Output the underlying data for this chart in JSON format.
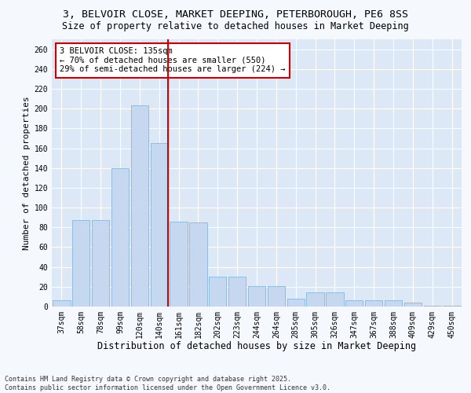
{
  "title1": "3, BELVOIR CLOSE, MARKET DEEPING, PETERBOROUGH, PE6 8SS",
  "title2": "Size of property relative to detached houses in Market Deeping",
  "xlabel": "Distribution of detached houses by size in Market Deeping",
  "ylabel": "Number of detached properties",
  "categories": [
    "37sqm",
    "58sqm",
    "78sqm",
    "99sqm",
    "120sqm",
    "140sqm",
    "161sqm",
    "182sqm",
    "202sqm",
    "223sqm",
    "244sqm",
    "264sqm",
    "285sqm",
    "305sqm",
    "326sqm",
    "347sqm",
    "367sqm",
    "388sqm",
    "409sqm",
    "429sqm",
    "450sqm"
  ],
  "values": [
    6,
    87,
    87,
    140,
    203,
    165,
    86,
    85,
    30,
    30,
    21,
    21,
    8,
    14,
    14,
    6,
    6,
    6,
    4,
    1,
    1
  ],
  "bar_color": "#c5d8ef",
  "bar_edge_color": "#7aadd4",
  "vline_x_index": 5,
  "vline_color": "#cc0000",
  "annotation_text": "3 BELVOIR CLOSE: 135sqm\n← 70% of detached houses are smaller (550)\n29% of semi-detached houses are larger (224) →",
  "annotation_box_color": "#ffffff",
  "annotation_box_edge": "#cc0000",
  "ylim": [
    0,
    270
  ],
  "yticks": [
    0,
    20,
    40,
    60,
    80,
    100,
    120,
    140,
    160,
    180,
    200,
    220,
    240,
    260
  ],
  "plot_bg_color": "#dce8f5",
  "fig_bg_color": "#f5f8fc",
  "footer": "Contains HM Land Registry data © Crown copyright and database right 2025.\nContains public sector information licensed under the Open Government Licence v3.0.",
  "title1_fontsize": 9.5,
  "title2_fontsize": 8.5,
  "xlabel_fontsize": 8.5,
  "ylabel_fontsize": 8,
  "tick_fontsize": 7,
  "annotation_fontsize": 7.5,
  "footer_fontsize": 6
}
